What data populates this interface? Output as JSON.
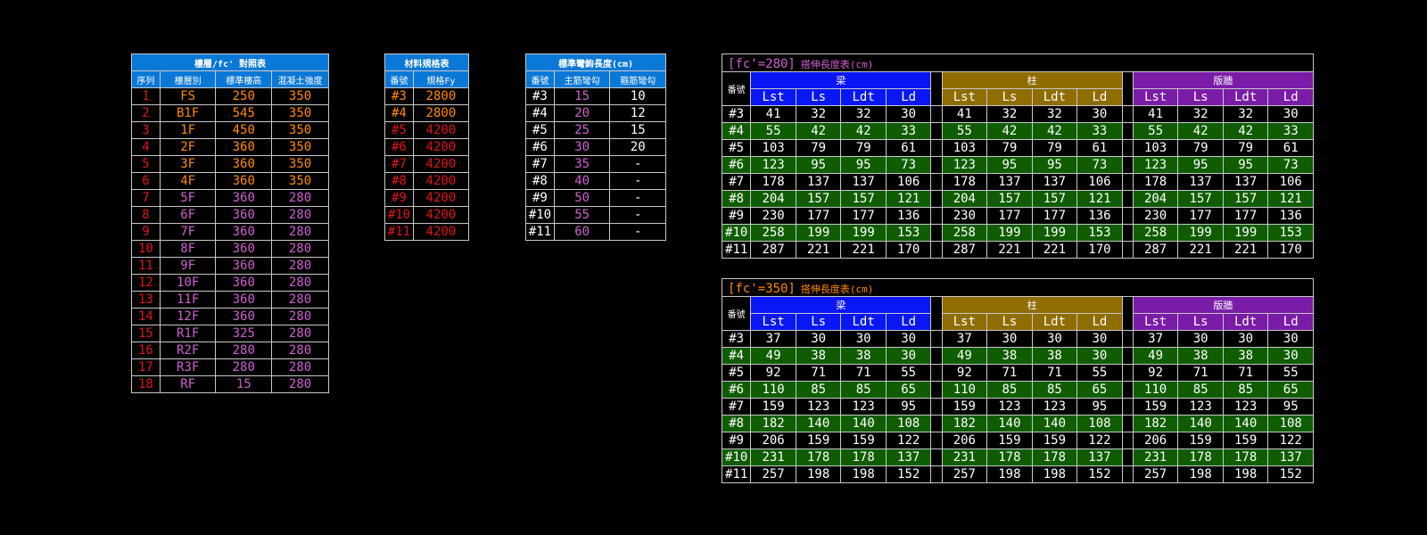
{
  "floor_table": {
    "title": "樓層/fc' 對照表",
    "headers": [
      "序列",
      "樓層別",
      "標準樓高",
      "混凝土強度"
    ],
    "rows": [
      [
        "1",
        "FS",
        "250",
        "350"
      ],
      [
        "2",
        "B1F",
        "545",
        "350"
      ],
      [
        "3",
        "1F",
        "450",
        "350"
      ],
      [
        "4",
        "2F",
        "360",
        "350"
      ],
      [
        "5",
        "3F",
        "360",
        "350"
      ],
      [
        "6",
        "4F",
        "360",
        "350"
      ],
      [
        "7",
        "5F",
        "360",
        "280"
      ],
      [
        "8",
        "6F",
        "360",
        "280"
      ],
      [
        "9",
        "7F",
        "360",
        "280"
      ],
      [
        "10",
        "8F",
        "360",
        "280"
      ],
      [
        "11",
        "9F",
        "360",
        "280"
      ],
      [
        "12",
        "10F",
        "360",
        "280"
      ],
      [
        "13",
        "11F",
        "360",
        "280"
      ],
      [
        "14",
        "12F",
        "360",
        "280"
      ],
      [
        "15",
        "R1F",
        "325",
        "280"
      ],
      [
        "16",
        "R2F",
        "280",
        "280"
      ],
      [
        "17",
        "R3F",
        "280",
        "280"
      ],
      [
        "18",
        "RF",
        "15",
        "280"
      ]
    ]
  },
  "material_table": {
    "title": "材料規格表",
    "headers": [
      "番號",
      "規格Fy"
    ],
    "rows": [
      [
        "#3",
        "2800"
      ],
      [
        "#4",
        "2800"
      ],
      [
        "#5",
        "4200"
      ],
      [
        "#6",
        "4200"
      ],
      [
        "#7",
        "4200"
      ],
      [
        "#8",
        "4200"
      ],
      [
        "#9",
        "4200"
      ],
      [
        "#10",
        "4200"
      ],
      [
        "#11",
        "4200"
      ]
    ]
  },
  "hook_table": {
    "title": "標準彎鉤長度(cm)",
    "headers": [
      "番號",
      "主筋彎勾",
      "箍筋彎勾"
    ],
    "rows": [
      [
        "#3",
        "15",
        "10"
      ],
      [
        "#4",
        "20",
        "12"
      ],
      [
        "#5",
        "25",
        "15"
      ],
      [
        "#6",
        "30",
        "20"
      ],
      [
        "#7",
        "35",
        "-"
      ],
      [
        "#8",
        "40",
        "-"
      ],
      [
        "#9",
        "50",
        "-"
      ],
      [
        "#10",
        "55",
        "-"
      ],
      [
        "#11",
        "60",
        "-"
      ]
    ]
  },
  "splice_280": {
    "tag": "[fc'=280]",
    "title": "搭伸長度表(cm)",
    "row_header": "番號",
    "groups": [
      "梁",
      "柱",
      "版牆"
    ],
    "subheaders": [
      "Lst",
      "Ls",
      "Ldt",
      "Ld"
    ],
    "rows": [
      {
        "id": "#3",
        "vals": [
          "41",
          "32",
          "32",
          "30"
        ]
      },
      {
        "id": "#4",
        "vals": [
          "55",
          "42",
          "42",
          "33"
        ]
      },
      {
        "id": "#5",
        "vals": [
          "103",
          "79",
          "79",
          "61"
        ]
      },
      {
        "id": "#6",
        "vals": [
          "123",
          "95",
          "95",
          "73"
        ]
      },
      {
        "id": "#7",
        "vals": [
          "178",
          "137",
          "137",
          "106"
        ]
      },
      {
        "id": "#8",
        "vals": [
          "204",
          "157",
          "157",
          "121"
        ]
      },
      {
        "id": "#9",
        "vals": [
          "230",
          "177",
          "177",
          "136"
        ]
      },
      {
        "id": "#10",
        "vals": [
          "258",
          "199",
          "199",
          "153"
        ]
      },
      {
        "id": "#11",
        "vals": [
          "287",
          "221",
          "221",
          "170"
        ]
      }
    ]
  },
  "splice_350": {
    "tag": "[fc'=350]",
    "title": "搭伸長度表(cm)",
    "row_header": "番號",
    "groups": [
      "梁",
      "柱",
      "版牆"
    ],
    "subheaders": [
      "Lst",
      "Ls",
      "Ldt",
      "Ld"
    ],
    "rows": [
      {
        "id": "#3",
        "vals": [
          "37",
          "30",
          "30",
          "30"
        ]
      },
      {
        "id": "#4",
        "vals": [
          "49",
          "38",
          "38",
          "30"
        ]
      },
      {
        "id": "#5",
        "vals": [
          "92",
          "71",
          "71",
          "55"
        ]
      },
      {
        "id": "#6",
        "vals": [
          "110",
          "85",
          "85",
          "65"
        ]
      },
      {
        "id": "#7",
        "vals": [
          "159",
          "123",
          "123",
          "95"
        ]
      },
      {
        "id": "#8",
        "vals": [
          "182",
          "140",
          "140",
          "108"
        ]
      },
      {
        "id": "#9",
        "vals": [
          "206",
          "159",
          "159",
          "122"
        ]
      },
      {
        "id": "#10",
        "vals": [
          "231",
          "178",
          "178",
          "137"
        ]
      },
      {
        "id": "#11",
        "vals": [
          "257",
          "198",
          "198",
          "152"
        ]
      }
    ]
  },
  "colors": {
    "background": "#000000",
    "header_blue": "#0a78d6",
    "beam_blue": "#0a17f5",
    "column_olive": "#8f6d00",
    "slab_purple": "#7a1ca8",
    "row_green": "#0f5d00",
    "index_red": "#e01515",
    "value_orange": "#ff8a00",
    "value_magenta": "#d05fd0"
  }
}
